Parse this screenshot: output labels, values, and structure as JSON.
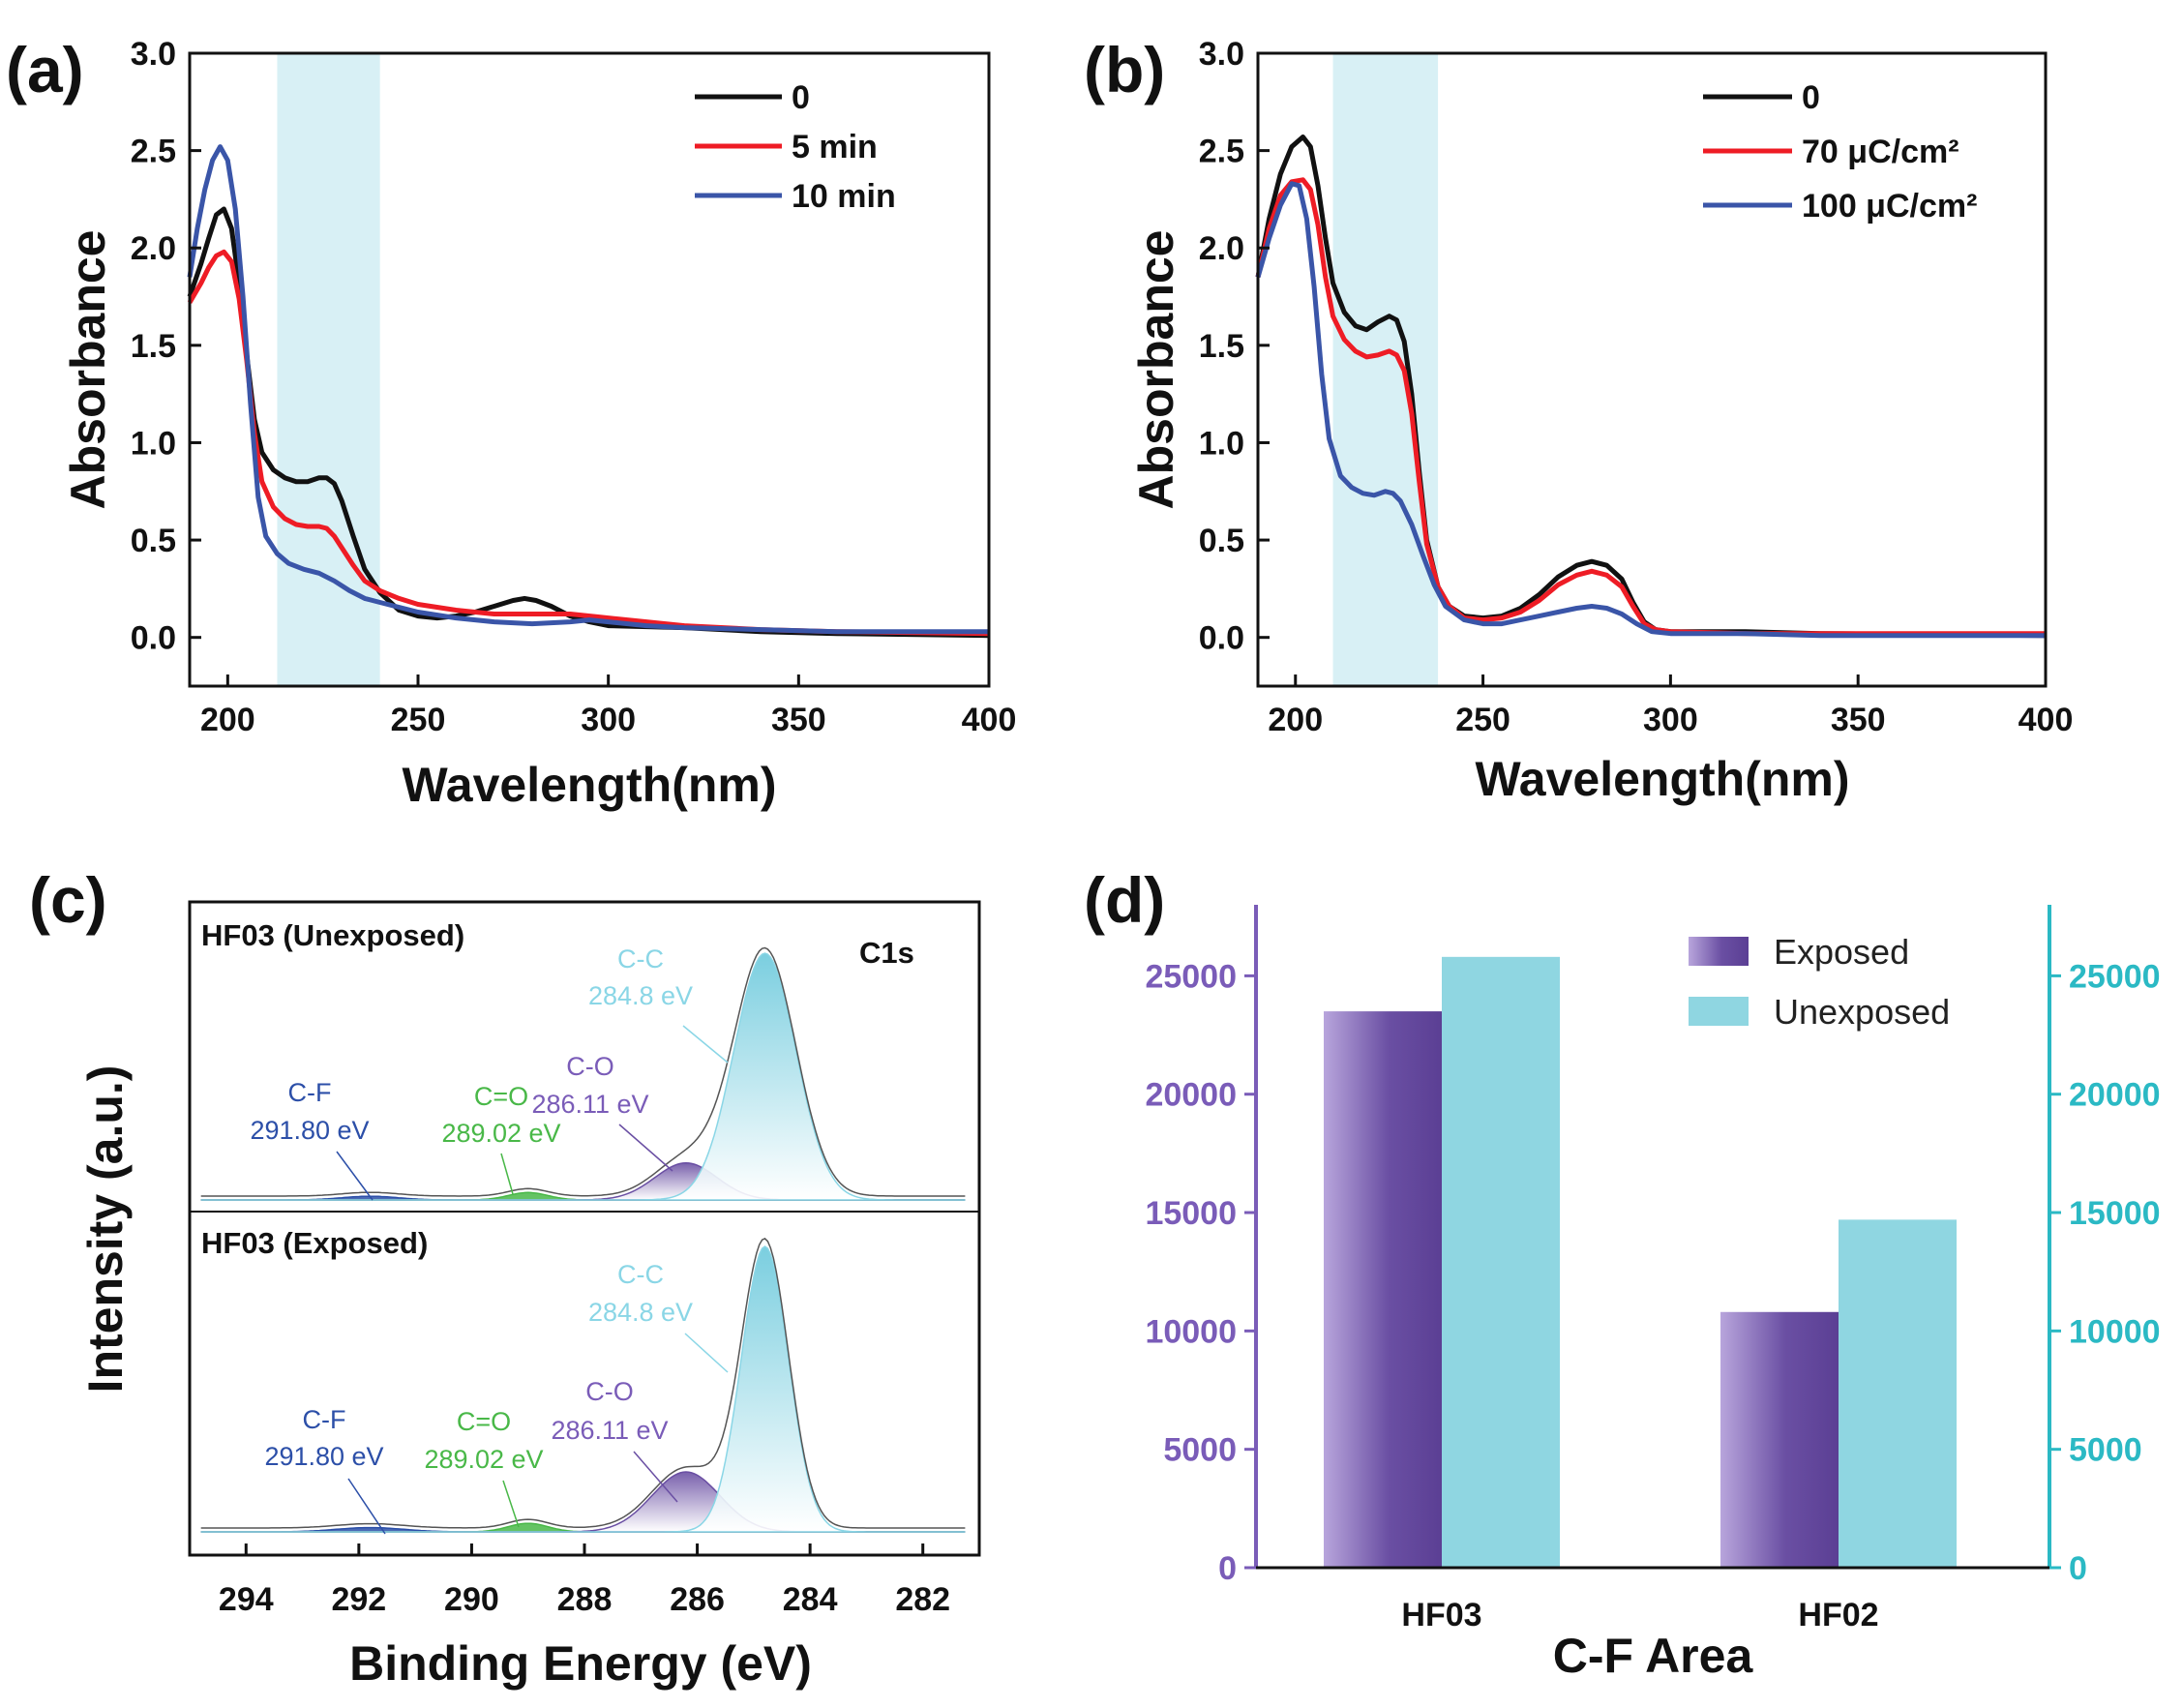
{
  "panel_labels": [
    "(a)",
    "(b)",
    "(c)",
    "(d)"
  ],
  "colors": {
    "black": "#111111",
    "red": "#ee1c25",
    "blue": "#3a55a8",
    "shade": "#d8f0f5",
    "purple": "#6a4fa3",
    "cyan": "#8fd6e1",
    "cyan_axis": "#2bb9c4",
    "purple_text": "#7a5cb8",
    "green": "#49b848",
    "navy": "#2c4fa8",
    "lightblue": "#8ad6e6"
  },
  "chart_data": [
    {
      "id": "a",
      "type": "line",
      "xlabel": "Wavelength(nm)",
      "ylabel": "Absorbance",
      "xlim": [
        190,
        400
      ],
      "ylim": [
        -0.25,
        3.0
      ],
      "xticks": [
        "200",
        "250",
        "300",
        "350",
        "400"
      ],
      "yticks": [
        "0.0",
        "0.5",
        "1.0",
        "1.5",
        "2.0",
        "2.5",
        "3.0"
      ],
      "shade_range": [
        213,
        240
      ],
      "legend": [
        "0",
        "5 min",
        "10 min"
      ],
      "series": [
        {
          "name": "0",
          "color": "#111111",
          "points": [
            [
              190,
              1.75
            ],
            [
              193,
              1.92
            ],
            [
              195,
              2.05
            ],
            [
              197,
              2.17
            ],
            [
              199,
              2.2
            ],
            [
              201,
              2.1
            ],
            [
              203,
              1.82
            ],
            [
              205,
              1.45
            ],
            [
              207,
              1.12
            ],
            [
              209,
              0.95
            ],
            [
              212,
              0.86
            ],
            [
              215,
              0.82
            ],
            [
              218,
              0.8
            ],
            [
              221,
              0.8
            ],
            [
              224,
              0.82
            ],
            [
              226,
              0.82
            ],
            [
              228,
              0.79
            ],
            [
              230,
              0.7
            ],
            [
              233,
              0.52
            ],
            [
              236,
              0.35
            ],
            [
              240,
              0.23
            ],
            [
              245,
              0.14
            ],
            [
              250,
              0.11
            ],
            [
              255,
              0.1
            ],
            [
              260,
              0.11
            ],
            [
              265,
              0.13
            ],
            [
              270,
              0.16
            ],
            [
              275,
              0.19
            ],
            [
              278,
              0.2
            ],
            [
              281,
              0.19
            ],
            [
              285,
              0.16
            ],
            [
              290,
              0.11
            ],
            [
              295,
              0.08
            ],
            [
              300,
              0.06
            ],
            [
              320,
              0.05
            ],
            [
              340,
              0.03
            ],
            [
              360,
              0.02
            ],
            [
              400,
              0.01
            ]
          ]
        },
        {
          "name": "5 min",
          "color": "#ee1c25",
          "points": [
            [
              190,
              1.72
            ],
            [
              193,
              1.82
            ],
            [
              195,
              1.9
            ],
            [
              197,
              1.96
            ],
            [
              199,
              1.98
            ],
            [
              201,
              1.93
            ],
            [
              203,
              1.74
            ],
            [
              205,
              1.42
            ],
            [
              207,
              1.05
            ],
            [
              209,
              0.8
            ],
            [
              212,
              0.67
            ],
            [
              215,
              0.61
            ],
            [
              218,
              0.58
            ],
            [
              221,
              0.57
            ],
            [
              224,
              0.57
            ],
            [
              226,
              0.56
            ],
            [
              228,
              0.52
            ],
            [
              230,
              0.46
            ],
            [
              233,
              0.37
            ],
            [
              236,
              0.29
            ],
            [
              240,
              0.24
            ],
            [
              245,
              0.2
            ],
            [
              250,
              0.17
            ],
            [
              260,
              0.14
            ],
            [
              270,
              0.12
            ],
            [
              280,
              0.12
            ],
            [
              290,
              0.12
            ],
            [
              300,
              0.1
            ],
            [
              310,
              0.08
            ],
            [
              320,
              0.06
            ],
            [
              340,
              0.04
            ],
            [
              360,
              0.03
            ],
            [
              400,
              0.02
            ]
          ]
        },
        {
          "name": "10 min",
          "color": "#3a55a8",
          "points": [
            [
              190,
              1.85
            ],
            [
              192,
              2.1
            ],
            [
              194,
              2.3
            ],
            [
              196,
              2.45
            ],
            [
              198,
              2.52
            ],
            [
              200,
              2.45
            ],
            [
              202,
              2.2
            ],
            [
              204,
              1.75
            ],
            [
              206,
              1.2
            ],
            [
              208,
              0.72
            ],
            [
              210,
              0.52
            ],
            [
              213,
              0.43
            ],
            [
              216,
              0.38
            ],
            [
              220,
              0.35
            ],
            [
              224,
              0.33
            ],
            [
              228,
              0.29
            ],
            [
              232,
              0.24
            ],
            [
              236,
              0.2
            ],
            [
              240,
              0.18
            ],
            [
              250,
              0.13
            ],
            [
              260,
              0.1
            ],
            [
              270,
              0.08
            ],
            [
              280,
              0.07
            ],
            [
              290,
              0.08
            ],
            [
              295,
              0.09
            ],
            [
              300,
              0.08
            ],
            [
              310,
              0.06
            ],
            [
              320,
              0.05
            ],
            [
              340,
              0.04
            ],
            [
              360,
              0.03
            ],
            [
              400,
              0.03
            ]
          ]
        }
      ]
    },
    {
      "id": "b",
      "type": "line",
      "xlabel": "Wavelength(nm)",
      "ylabel": "Absorbance",
      "xlim": [
        190,
        400
      ],
      "ylim": [
        -0.25,
        3.0
      ],
      "xticks": [
        "200",
        "250",
        "300",
        "350",
        "400"
      ],
      "yticks": [
        "0.0",
        "0.5",
        "1.0",
        "1.5",
        "2.0",
        "2.5",
        "3.0"
      ],
      "shade_range": [
        210,
        238
      ],
      "legend": [
        "0",
        "70 μC/cm²",
        "100 μC/cm²"
      ],
      "series": [
        {
          "name": "0",
          "color": "#111111",
          "points": [
            [
              190,
              1.85
            ],
            [
              193,
              2.15
            ],
            [
              196,
              2.38
            ],
            [
              199,
              2.52
            ],
            [
              202,
              2.57
            ],
            [
              204,
              2.52
            ],
            [
              206,
              2.32
            ],
            [
              208,
              2.05
            ],
            [
              210,
              1.82
            ],
            [
              213,
              1.67
            ],
            [
              216,
              1.6
            ],
            [
              219,
              1.58
            ],
            [
              222,
              1.62
            ],
            [
              225,
              1.65
            ],
            [
              227,
              1.63
            ],
            [
              229,
              1.52
            ],
            [
              231,
              1.25
            ],
            [
              233,
              0.85
            ],
            [
              235,
              0.5
            ],
            [
              238,
              0.26
            ],
            [
              241,
              0.16
            ],
            [
              245,
              0.11
            ],
            [
              250,
              0.1
            ],
            [
              255,
              0.11
            ],
            [
              260,
              0.15
            ],
            [
              265,
              0.22
            ],
            [
              270,
              0.31
            ],
            [
              275,
              0.37
            ],
            [
              279,
              0.39
            ],
            [
              283,
              0.37
            ],
            [
              287,
              0.3
            ],
            [
              290,
              0.18
            ],
            [
              293,
              0.08
            ],
            [
              296,
              0.04
            ],
            [
              300,
              0.03
            ],
            [
              320,
              0.03
            ],
            [
              340,
              0.02
            ],
            [
              400,
              0.01
            ]
          ]
        },
        {
          "name": "70 μC/cm²",
          "color": "#ee1c25",
          "points": [
            [
              190,
              1.85
            ],
            [
              193,
              2.1
            ],
            [
              196,
              2.27
            ],
            [
              199,
              2.34
            ],
            [
              202,
              2.35
            ],
            [
              204,
              2.3
            ],
            [
              206,
              2.12
            ],
            [
              208,
              1.85
            ],
            [
              210,
              1.65
            ],
            [
              213,
              1.53
            ],
            [
              216,
              1.47
            ],
            [
              219,
              1.44
            ],
            [
              222,
              1.45
            ],
            [
              225,
              1.47
            ],
            [
              227,
              1.45
            ],
            [
              229,
              1.37
            ],
            [
              231,
              1.15
            ],
            [
              233,
              0.8
            ],
            [
              235,
              0.48
            ],
            [
              238,
              0.26
            ],
            [
              241,
              0.16
            ],
            [
              245,
              0.1
            ],
            [
              250,
              0.09
            ],
            [
              255,
              0.1
            ],
            [
              260,
              0.13
            ],
            [
              265,
              0.19
            ],
            [
              270,
              0.27
            ],
            [
              275,
              0.32
            ],
            [
              279,
              0.34
            ],
            [
              283,
              0.32
            ],
            [
              287,
              0.26
            ],
            [
              290,
              0.16
            ],
            [
              293,
              0.07
            ],
            [
              296,
              0.04
            ],
            [
              300,
              0.03
            ],
            [
              320,
              0.02
            ],
            [
              340,
              0.02
            ],
            [
              400,
              0.02
            ]
          ]
        },
        {
          "name": "100 μC/cm²",
          "color": "#3a55a8",
          "points": [
            [
              190,
              1.85
            ],
            [
              193,
              2.05
            ],
            [
              196,
              2.22
            ],
            [
              199,
              2.33
            ],
            [
              201,
              2.32
            ],
            [
              203,
              2.15
            ],
            [
              205,
              1.8
            ],
            [
              207,
              1.35
            ],
            [
              209,
              1.02
            ],
            [
              212,
              0.83
            ],
            [
              215,
              0.77
            ],
            [
              218,
              0.74
            ],
            [
              221,
              0.73
            ],
            [
              224,
              0.75
            ],
            [
              226,
              0.74
            ],
            [
              228,
              0.7
            ],
            [
              231,
              0.58
            ],
            [
              234,
              0.42
            ],
            [
              237,
              0.27
            ],
            [
              240,
              0.16
            ],
            [
              245,
              0.09
            ],
            [
              250,
              0.07
            ],
            [
              255,
              0.07
            ],
            [
              260,
              0.09
            ],
            [
              265,
              0.11
            ],
            [
              270,
              0.13
            ],
            [
              275,
              0.15
            ],
            [
              279,
              0.16
            ],
            [
              283,
              0.15
            ],
            [
              287,
              0.12
            ],
            [
              291,
              0.07
            ],
            [
              295,
              0.03
            ],
            [
              300,
              0.02
            ],
            [
              320,
              0.02
            ],
            [
              340,
              0.01
            ],
            [
              400,
              0.01
            ]
          ]
        }
      ]
    },
    {
      "id": "c",
      "type": "area",
      "title": "C1s",
      "xlabel": "Binding Energy (eV)",
      "ylabel": "Intensity (a.u.)",
      "xlim": [
        295,
        281
      ],
      "x_reversed": true,
      "xticks": [
        "294",
        "292",
        "290",
        "288",
        "286",
        "284",
        "282"
      ],
      "spectra": [
        {
          "name": "HF03 (Unexposed)",
          "peaks": [
            {
              "label": "C-C",
              "energy": "284.8 eV",
              "center": 284.8,
              "height": 1.0,
              "sigma": 0.55,
              "color": "#8ad6e6"
            },
            {
              "label": "C-O",
              "energy": "286.11 eV",
              "center": 286.2,
              "height": 0.15,
              "sigma": 0.55,
              "color": "#6a4fa3"
            },
            {
              "label": "C=O",
              "energy": "289.02 eV",
              "center": 289.0,
              "height": 0.03,
              "sigma": 0.35,
              "color": "#49b848"
            },
            {
              "label": "C-F",
              "energy": "291.80 eV",
              "center": 291.8,
              "height": 0.015,
              "sigma": 0.5,
              "color": "#2c4fa8"
            }
          ]
        },
        {
          "name": "HF03 (Exposed)",
          "peaks": [
            {
              "label": "C-C",
              "energy": "284.8 eV",
              "center": 284.8,
              "height": 1.0,
              "sigma": 0.42,
              "color": "#8ad6e6"
            },
            {
              "label": "C-O",
              "energy": "286.11 eV",
              "center": 286.2,
              "height": 0.21,
              "sigma": 0.6,
              "color": "#6a4fa3"
            },
            {
              "label": "C=O",
              "energy": "289.02 eV",
              "center": 289.0,
              "height": 0.03,
              "sigma": 0.35,
              "color": "#49b848"
            },
            {
              "label": "C-F",
              "energy": "291.80 eV",
              "center": 291.8,
              "height": 0.015,
              "sigma": 0.6,
              "color": "#2c4fa8"
            }
          ]
        }
      ]
    },
    {
      "id": "d",
      "type": "bar",
      "xlabel": "C-F Area",
      "categories": [
        "HF03",
        "HF02"
      ],
      "ylim": [
        0,
        28000
      ],
      "yticks": [
        "0",
        "5000",
        "10000",
        "15000",
        "20000",
        "25000"
      ],
      "series": [
        {
          "name": "Exposed",
          "axis": "left",
          "color": "#6a4fa3",
          "values": [
            23500,
            10800
          ]
        },
        {
          "name": "Unexposed",
          "axis": "right",
          "color": "#8fd6e1",
          "values": [
            25800,
            14700
          ]
        }
      ]
    }
  ]
}
